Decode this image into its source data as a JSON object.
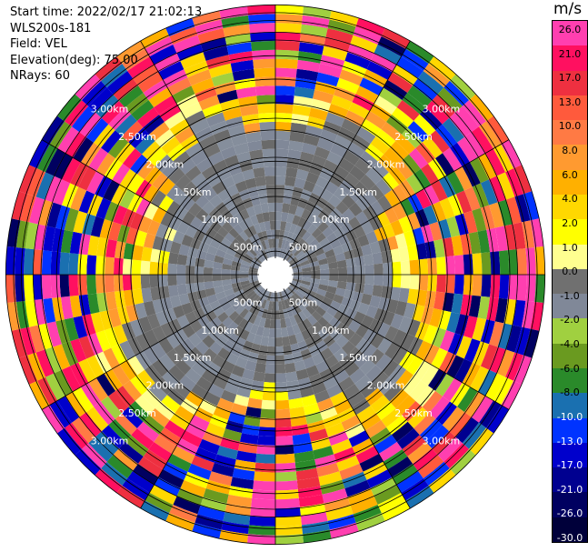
{
  "header": {
    "start_time": "Start time: 2022/02/17 21:02:13",
    "instrument": "WLS200s-181",
    "field": "Field: VEL",
    "elevation": "Elevation(deg): 75.00",
    "nrays": "NRays: 60"
  },
  "colorbar": {
    "unit": "m/s",
    "labels": [
      "26.0",
      "21.0",
      "17.0",
      "13.0",
      "10.0",
      "8.0",
      "6.0",
      "4.0",
      "2.0",
      "1.0",
      "0.0",
      "-1.0",
      "-2.0",
      "-4.0",
      "-6.0",
      "-8.0",
      "-10.0",
      "-13.0",
      "-17.0",
      "-21.0",
      "-26.0",
      "-30.0"
    ],
    "colors": [
      "#ff3fb0",
      "#ff1060",
      "#ee3040",
      "#ff5a3c",
      "#ff7a44",
      "#ff9a30",
      "#ffb000",
      "#ffd800",
      "#ffff00",
      "#ffff90",
      "#707070",
      "#808898",
      "#a0d040",
      "#6a9a20",
      "#2a8a2a",
      "#1a70b0",
      "#0033ff",
      "#0000cc",
      "#000090",
      "#000060",
      "#00003a"
    ]
  },
  "chart_data": {
    "type": "heatmap",
    "projection": "polar",
    "variable": "VEL",
    "unit": "m/s",
    "n_rays": 60,
    "range_rings_km": [
      0.5,
      1.0,
      1.5,
      2.0,
      2.5,
      3.0
    ],
    "ring_labels": [
      "500m",
      "1.00km",
      "1.50km",
      "2.00km",
      "2.50km",
      "3.00km"
    ],
    "max_range_km": 3.45,
    "notes_rings_km": [
      0.3,
      1.1,
      1.45,
      1.85,
      2.2,
      2.5,
      2.8,
      3.1,
      3.25,
      3.35,
      3.45
    ],
    "value_range": [
      -30,
      26
    ]
  }
}
